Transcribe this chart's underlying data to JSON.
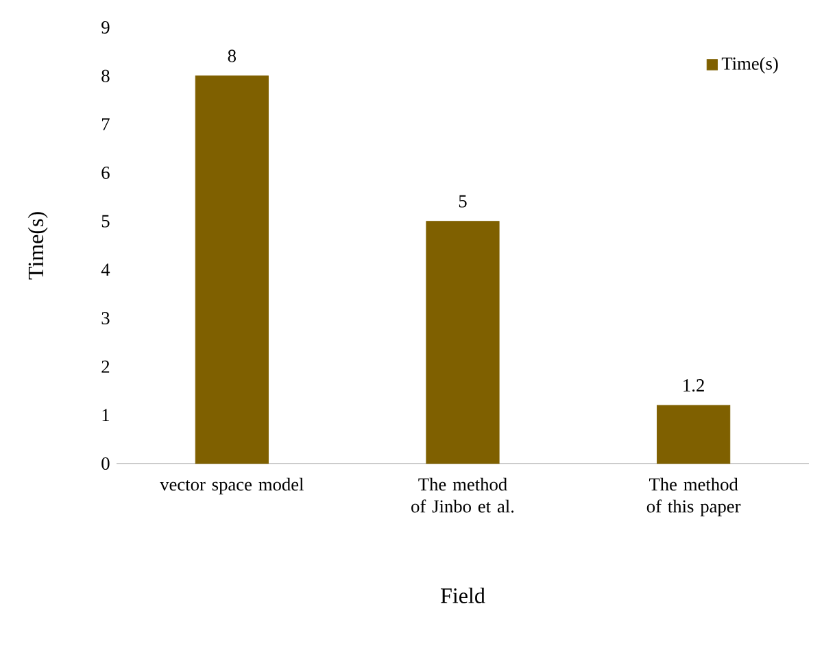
{
  "chart_data": {
    "type": "bar",
    "xlabel": "Field",
    "ylabel": "Time(s)",
    "categories": [
      "vector space model",
      "The method of Jinbo et al.",
      "The method of this paper"
    ],
    "series": [
      {
        "name": "Time(s)",
        "color": "#7f6000",
        "values": [
          8,
          5,
          1.2
        ]
      }
    ],
    "ylim": [
      0,
      9
    ],
    "yticks": [
      0,
      1,
      2,
      3,
      4,
      5,
      6,
      7,
      8,
      9
    ],
    "data_labels": true,
    "legend": "top right"
  }
}
